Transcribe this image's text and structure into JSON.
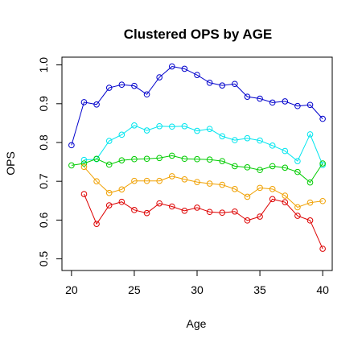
{
  "chart_data": {
    "type": "line",
    "title": "Clustered OPS by AGE",
    "xlabel": "Age",
    "ylabel": "OPS",
    "xlim": [
      19.24,
      40.76
    ],
    "ylim": [
      0.47,
      1.02
    ],
    "x_ticks": [
      20,
      25,
      30,
      35,
      40
    ],
    "x_tick_labels": [
      "20",
      "25",
      "30",
      "35",
      "40"
    ],
    "y_ticks": [
      0.5,
      0.6,
      0.7,
      0.8,
      0.9,
      1.0
    ],
    "y_tick_labels": [
      "0.5",
      "0.6",
      "0.7",
      "0.8",
      "0.9",
      "1.0"
    ],
    "grid": false,
    "series": [
      {
        "color": "#0000cc",
        "x": [
          20,
          21,
          22,
          23,
          24,
          25,
          26,
          27,
          28,
          29,
          30,
          31,
          32,
          33,
          34,
          35,
          36,
          37,
          38,
          39,
          40
        ],
        "values": [
          0.793,
          0.904,
          0.898,
          0.941,
          0.949,
          0.946,
          0.924,
          0.968,
          0.996,
          0.99,
          0.974,
          0.954,
          0.947,
          0.951,
          0.918,
          0.913,
          0.903,
          0.906,
          0.894,
          0.897,
          0.861
        ]
      },
      {
        "color": "#00e5ee",
        "x": [
          21,
          22,
          23,
          24,
          25,
          26,
          27,
          28,
          29,
          30,
          31,
          32,
          33,
          34,
          35,
          36,
          37,
          38,
          39,
          40
        ],
        "values": [
          0.755,
          0.757,
          0.804,
          0.82,
          0.844,
          0.831,
          0.842,
          0.841,
          0.842,
          0.83,
          0.835,
          0.816,
          0.806,
          0.811,
          0.805,
          0.792,
          0.778,
          0.752,
          0.821,
          0.742
        ]
      },
      {
        "color": "#00cc00",
        "x": [
          20,
          21,
          22,
          23,
          24,
          25,
          26,
          27,
          28,
          29,
          30,
          31,
          32,
          33,
          34,
          35,
          36,
          37,
          38,
          39,
          40
        ],
        "values": [
          0.741,
          0.746,
          0.758,
          0.743,
          0.754,
          0.757,
          0.758,
          0.76,
          0.766,
          0.758,
          0.757,
          0.756,
          0.752,
          0.739,
          0.736,
          0.729,
          0.739,
          0.735,
          0.724,
          0.697,
          0.746
        ]
      },
      {
        "color": "#f0a000",
        "x": [
          21,
          22,
          23,
          24,
          25,
          26,
          27,
          28,
          29,
          30,
          31,
          32,
          33,
          34,
          35,
          36,
          37,
          38,
          39,
          40
        ],
        "values": [
          0.737,
          0.7,
          0.67,
          0.679,
          0.701,
          0.701,
          0.701,
          0.713,
          0.705,
          0.698,
          0.694,
          0.691,
          0.68,
          0.66,
          0.683,
          0.68,
          0.663,
          0.633,
          0.645,
          0.649
        ]
      },
      {
        "color": "#dd0000",
        "x": [
          21,
          22,
          23,
          24,
          25,
          26,
          27,
          28,
          29,
          30,
          31,
          32,
          33,
          34,
          35,
          36,
          37,
          38,
          39,
          40
        ],
        "values": [
          0.667,
          0.59,
          0.638,
          0.647,
          0.626,
          0.618,
          0.643,
          0.635,
          0.624,
          0.632,
          0.621,
          0.619,
          0.622,
          0.599,
          0.609,
          0.654,
          0.646,
          0.611,
          0.599,
          0.526
        ]
      }
    ]
  }
}
